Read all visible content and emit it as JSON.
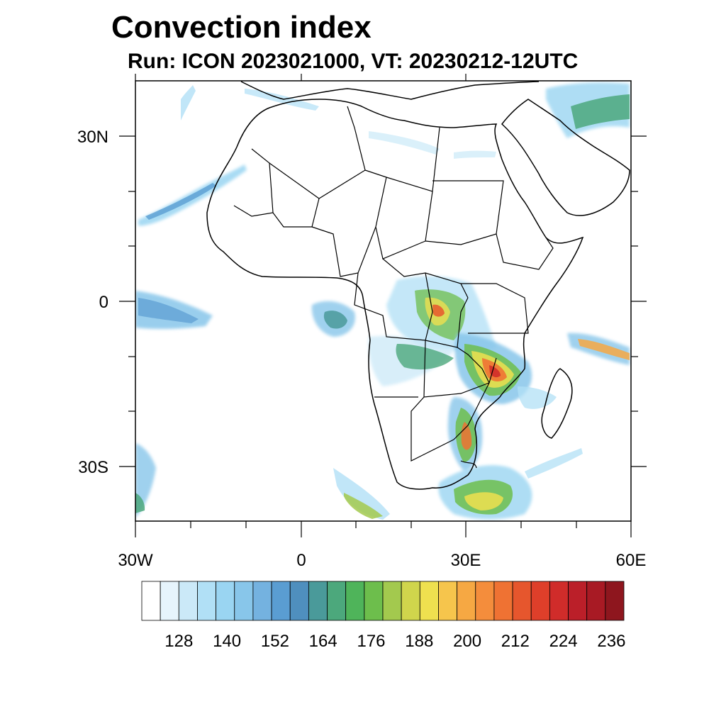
{
  "title": "Convection index",
  "subtitle": "Run: ICON 2023021000,  VT: 20230212-12UTC",
  "map": {
    "lon_range": [
      -30,
      60
    ],
    "lat_range": [
      -40,
      40
    ],
    "x_tick_labels": [
      "30W",
      "0",
      "30E",
      "60E"
    ],
    "x_tick_lons": [
      -30,
      0,
      30,
      60
    ],
    "y_tick_labels": [
      "30N",
      "0",
      "30S"
    ],
    "y_tick_lats": [
      30,
      0,
      -30
    ]
  },
  "colorbar": {
    "colors": [
      "#ffffff",
      "#e6f4fc",
      "#cbe9f8",
      "#b1e0f6",
      "#9ad5f2",
      "#88c6ea",
      "#74b2e0",
      "#5a9dd2",
      "#4f8fbe",
      "#4a9a9a",
      "#4ca87c",
      "#4fb45a",
      "#6dbe4c",
      "#a3c94e",
      "#d0d54c",
      "#efe04f",
      "#f6c54c",
      "#f6a843",
      "#f48d3c",
      "#ef7233",
      "#e6562d",
      "#de3f2a",
      "#d02c2a",
      "#bb1f29",
      "#a81a24",
      "#8e161e"
    ],
    "tick_labels": [
      "128",
      "140",
      "152",
      "164",
      "176",
      "188",
      "200",
      "212",
      "224",
      "236"
    ]
  }
}
